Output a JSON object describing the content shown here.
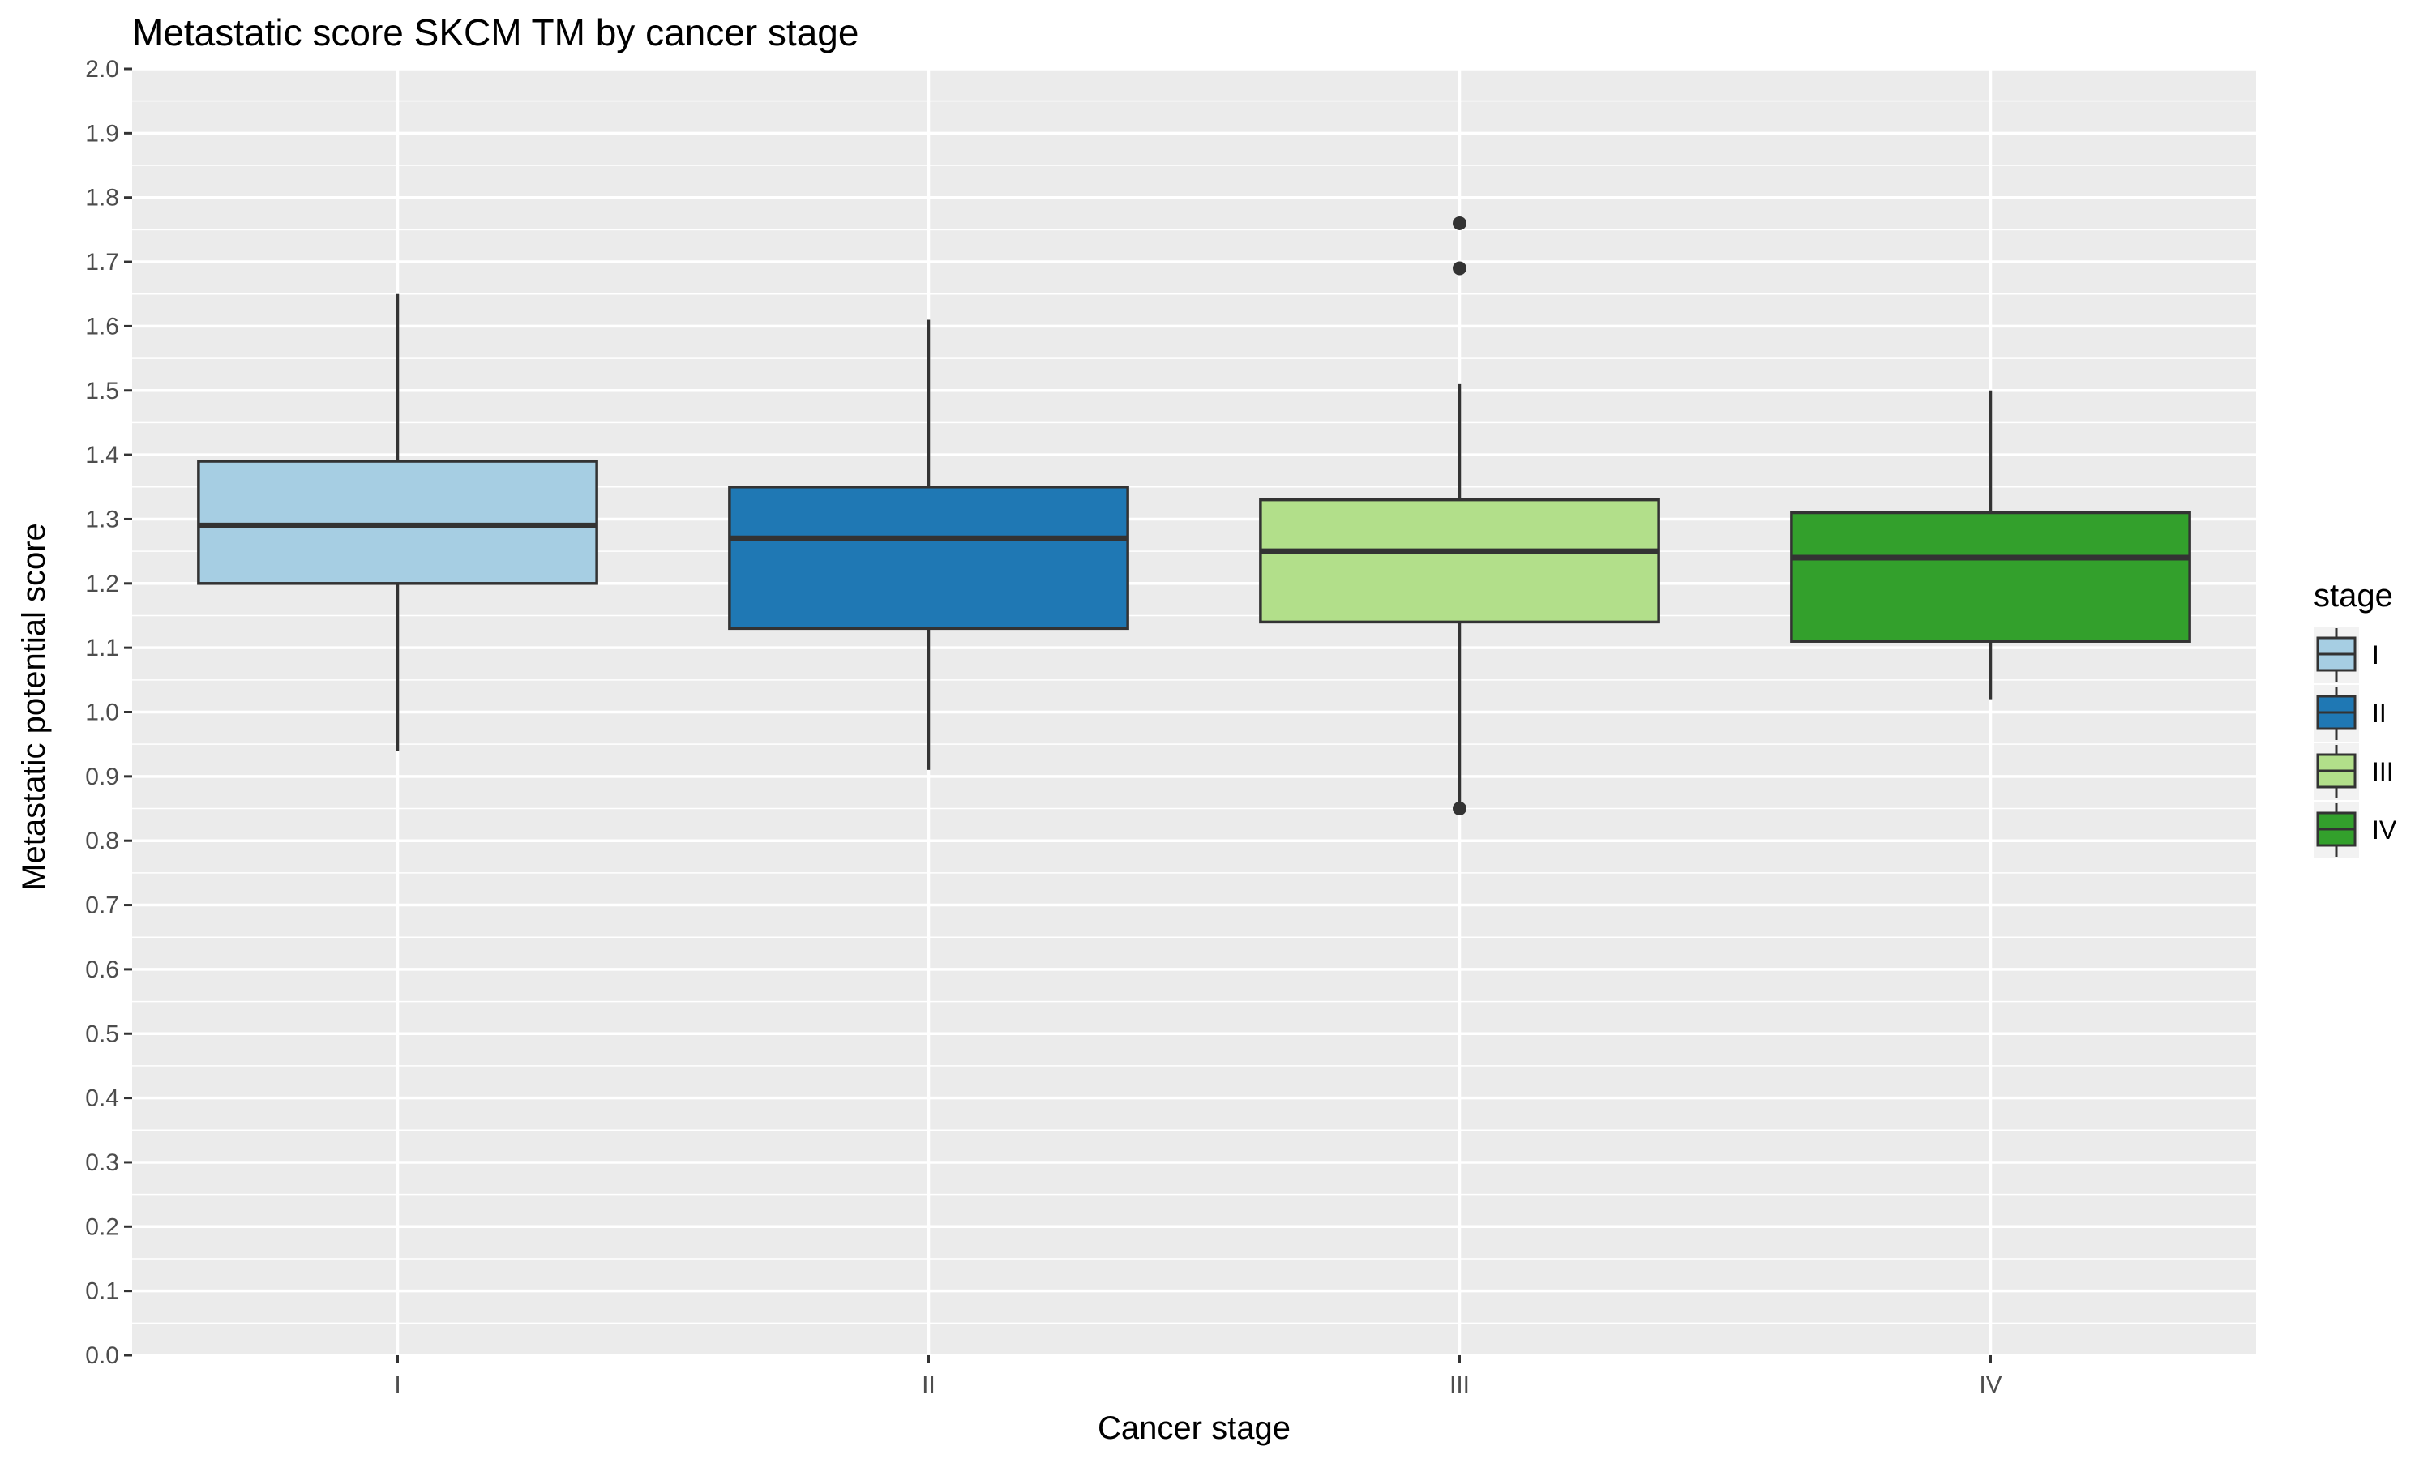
{
  "chart_data": {
    "type": "box",
    "title": "Metastatic score SKCM TM by cancer stage",
    "xlabel": "Cancer stage",
    "ylabel": "Metastatic potential score",
    "ylim": [
      0,
      2
    ],
    "yticks": [
      "0.0",
      "0.1",
      "0.2",
      "0.3",
      "0.4",
      "0.5",
      "0.6",
      "0.7",
      "0.8",
      "0.9",
      "1.0",
      "1.1",
      "1.2",
      "1.3",
      "1.4",
      "1.5",
      "1.6",
      "1.7",
      "1.8",
      "1.9",
      "2.0"
    ],
    "categories": [
      "I",
      "II",
      "III",
      "IV"
    ],
    "grid": true,
    "legend": {
      "title": "stage",
      "position": "right"
    },
    "series": [
      {
        "name": "I",
        "color": "#a6cee3",
        "whisker_low": 0.94,
        "q1": 1.2,
        "median": 1.29,
        "q3": 1.39,
        "whisker_high": 1.65,
        "outliers": []
      },
      {
        "name": "II",
        "color": "#1f78b4",
        "whisker_low": 0.91,
        "q1": 1.13,
        "median": 1.27,
        "q3": 1.35,
        "whisker_high": 1.61,
        "outliers": []
      },
      {
        "name": "III",
        "color": "#b2df8a",
        "whisker_low": 0.85,
        "q1": 1.14,
        "median": 1.25,
        "q3": 1.33,
        "whisker_high": 1.51,
        "outliers": [
          1.69,
          1.76,
          0.85
        ]
      },
      {
        "name": "IV",
        "color": "#33a02c",
        "whisker_low": 1.02,
        "q1": 1.11,
        "median": 1.24,
        "q3": 1.31,
        "whisker_high": 1.5,
        "outliers": []
      }
    ]
  }
}
